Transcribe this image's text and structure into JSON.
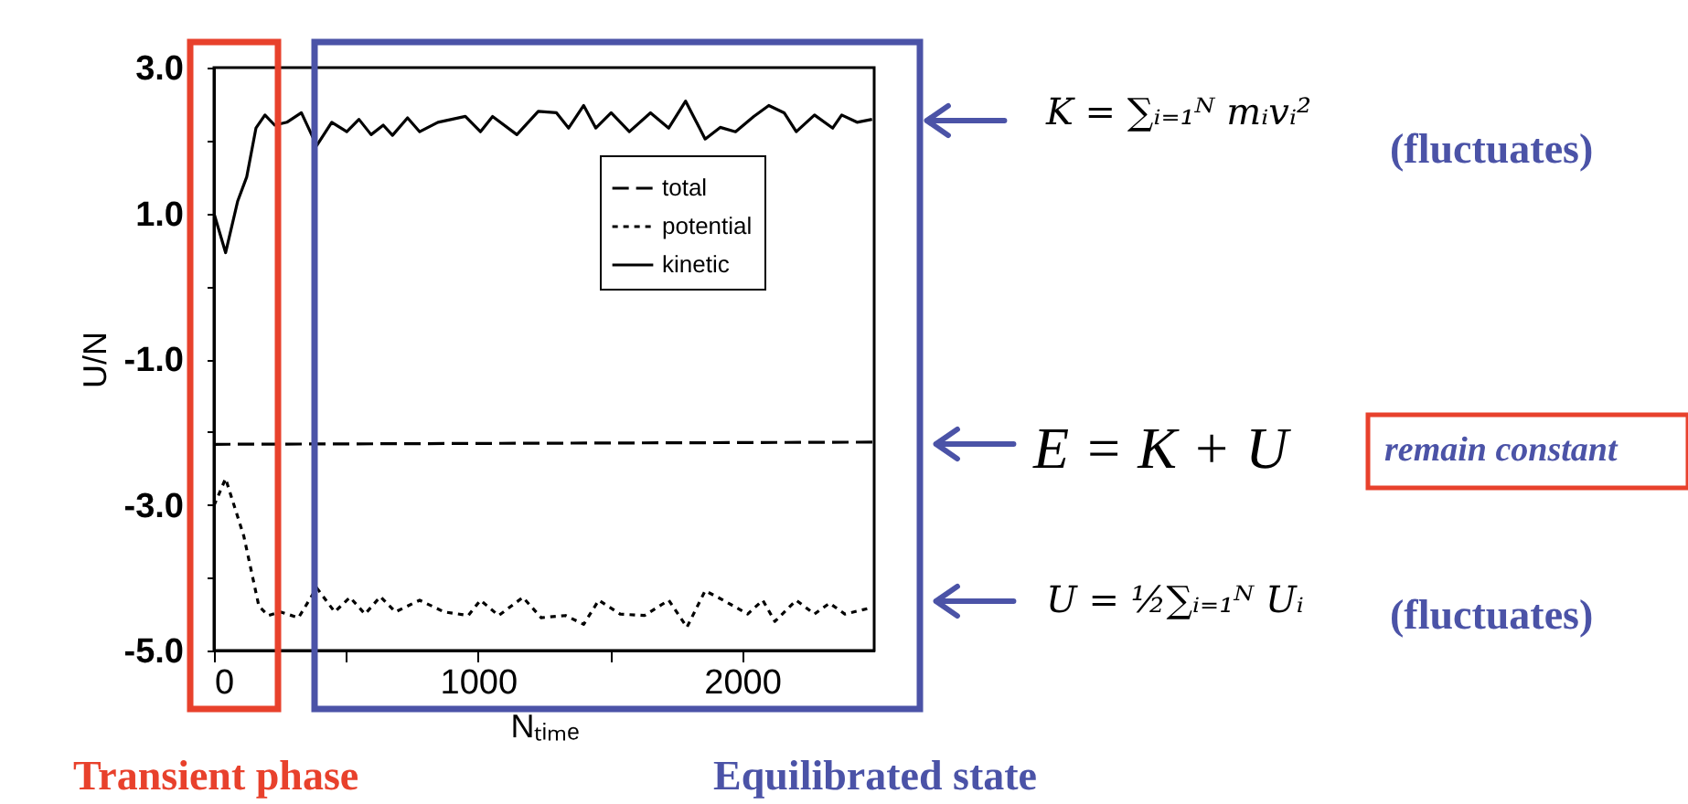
{
  "chart_data": {
    "type": "line",
    "xlabel": "Nₜᵢₘₑ",
    "ylabel": "U/N",
    "xlim": [
      0,
      2500
    ],
    "xticks": [
      0,
      {
        "value": 500,
        "label": null
      },
      1000,
      {
        "value": 1500,
        "label": null
      },
      2000
    ],
    "ylim": [
      -5,
      3
    ],
    "yticks": [
      {
        "value": 3,
        "label": "3.0"
      },
      {
        "value": 2,
        "label": null
      },
      {
        "value": 1,
        "label": "1.0"
      },
      {
        "value": 0,
        "label": null
      },
      {
        "value": -1,
        "label": "-1.0"
      },
      {
        "value": -2,
        "label": null
      },
      {
        "value": -3,
        "label": "-3.0"
      },
      {
        "value": -4,
        "label": null
      },
      {
        "value": -5,
        "label": "-5.0"
      }
    ],
    "legend": "top right",
    "series": [
      {
        "name": "total",
        "color": "#000000",
        "line_style": "dashed",
        "x": [
          0,
          2500
        ],
        "values": [
          -2.17,
          -2.14
        ]
      },
      {
        "name": "potential",
        "color": "#000000",
        "line_style": "dotted",
        "x": [
          0,
          44,
          113,
          170,
          205,
          251,
          320,
          389,
          457,
          515,
          572,
          630,
          687,
          779,
          871,
          963,
          1009,
          1078,
          1170,
          1239,
          1331,
          1400,
          1457,
          1538,
          1630,
          1722,
          1791,
          1860,
          1929,
          2021,
          2078,
          2124,
          2205,
          2274,
          2331,
          2389,
          2481
        ],
        "values": [
          -3.01,
          -2.64,
          -3.43,
          -4.39,
          -4.52,
          -4.47,
          -4.55,
          -4.14,
          -4.47,
          -4.27,
          -4.5,
          -4.26,
          -4.47,
          -4.31,
          -4.47,
          -4.52,
          -4.31,
          -4.52,
          -4.27,
          -4.55,
          -4.52,
          -4.64,
          -4.31,
          -4.5,
          -4.52,
          -4.31,
          -4.68,
          -4.18,
          -4.31,
          -4.5,
          -4.31,
          -4.6,
          -4.31,
          -4.5,
          -4.35,
          -4.5,
          -4.42
        ]
      },
      {
        "name": "kinetic",
        "color": "#000000",
        "line_style": "solid",
        "x": [
          0,
          44,
          90,
          124,
          159,
          193,
          230,
          276,
          331,
          389,
          446,
          503,
          549,
          595,
          641,
          676,
          733,
          779,
          848,
          952,
          1009,
          1055,
          1147,
          1228,
          1297,
          1343,
          1400,
          1446,
          1504,
          1573,
          1653,
          1722,
          1786,
          1860,
          1917,
          1975,
          2044,
          2101,
          2159,
          2205,
          2274,
          2343,
          2377,
          2435,
          2492
        ],
        "values": [
          1.0,
          0.46,
          1.17,
          1.5,
          2.17,
          2.35,
          2.21,
          2.25,
          2.38,
          1.93,
          2.25,
          2.12,
          2.29,
          2.08,
          2.21,
          2.07,
          2.31,
          2.12,
          2.25,
          2.33,
          2.12,
          2.33,
          2.08,
          2.4,
          2.38,
          2.17,
          2.48,
          2.17,
          2.38,
          2.12,
          2.38,
          2.17,
          2.54,
          2.02,
          2.18,
          2.12,
          2.33,
          2.48,
          2.38,
          2.12,
          2.35,
          2.17,
          2.35,
          2.25,
          2.29
        ]
      }
    ],
    "annotations": [
      "Transient phase",
      "Equilibrated state",
      "K = ∑ᵢ₌₁ᴺ mᵢvᵢ²",
      "(fluctuates)",
      "E = K + U",
      "remain constant",
      "U = ½∑ᵢ₌₁ᴺ Uᵢ",
      "(fluctuates)"
    ]
  }
}
